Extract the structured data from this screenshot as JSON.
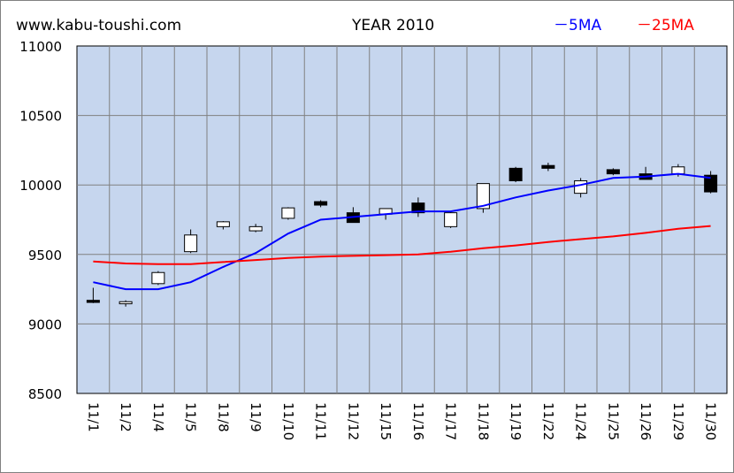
{
  "header": {
    "site": "www.kabu-toushi.com",
    "title": "YEAR 2010",
    "legend_5ma": "－5MA",
    "legend_25ma": "－25MA"
  },
  "colors": {
    "plot_bg": "#c6d6ee",
    "grid": "#808080",
    "ma5": "#0000ff",
    "ma25": "#ff0000",
    "candle_up": "#ffffff",
    "candle_down": "#000000"
  },
  "chart_data": {
    "type": "candlestick",
    "title": "YEAR 2010",
    "ylim": [
      8500,
      11000
    ],
    "yticks": [
      8500,
      9000,
      9500,
      10000,
      10500,
      11000
    ],
    "grid": true,
    "legend_position": "top-right",
    "categories": [
      "11/1",
      "11/2",
      "11/4",
      "11/5",
      "11/8",
      "11/9",
      "11/10",
      "11/11",
      "11/12",
      "11/15",
      "11/16",
      "11/17",
      "11/18",
      "11/19",
      "11/22",
      "11/24",
      "11/25",
      "11/26",
      "11/29",
      "11/30"
    ],
    "candles": [
      {
        "open": 9170,
        "high": 9260,
        "low": 9150,
        "close": 9155
      },
      {
        "open": 9145,
        "high": 9170,
        "low": 9125,
        "close": 9160
      },
      {
        "open": 9290,
        "high": 9380,
        "low": 9280,
        "close": 9370
      },
      {
        "open": 9520,
        "high": 9680,
        "low": 9510,
        "close": 9640
      },
      {
        "open": 9700,
        "high": 9740,
        "low": 9680,
        "close": 9735
      },
      {
        "open": 9670,
        "high": 9720,
        "low": 9660,
        "close": 9700
      },
      {
        "open": 9760,
        "high": 9840,
        "low": 9750,
        "close": 9835
      },
      {
        "open": 9880,
        "high": 9890,
        "low": 9840,
        "close": 9855
      },
      {
        "open": 9800,
        "high": 9840,
        "low": 9730,
        "close": 9730
      },
      {
        "open": 9790,
        "high": 9830,
        "low": 9750,
        "close": 9830
      },
      {
        "open": 9870,
        "high": 9910,
        "low": 9770,
        "close": 9800
      },
      {
        "open": 9700,
        "high": 9810,
        "low": 9690,
        "close": 9800
      },
      {
        "open": 9830,
        "high": 10010,
        "low": 9800,
        "close": 10010
      },
      {
        "open": 10120,
        "high": 10130,
        "low": 10020,
        "close": 10030
      },
      {
        "open": 10140,
        "high": 10160,
        "low": 10100,
        "close": 10120
      },
      {
        "open": 9940,
        "high": 10050,
        "low": 9910,
        "close": 10030
      },
      {
        "open": 10110,
        "high": 10120,
        "low": 10070,
        "close": 10080
      },
      {
        "open": 10080,
        "high": 10130,
        "low": 10040,
        "close": 10040
      },
      {
        "open": 10080,
        "high": 10150,
        "low": 10060,
        "close": 10130
      },
      {
        "open": 10070,
        "high": 10100,
        "low": 9940,
        "close": 9950
      }
    ],
    "series": [
      {
        "name": "5MA",
        "values": [
          9300,
          9250,
          9250,
          9300,
          9410,
          9510,
          9650,
          9750,
          9770,
          9790,
          9810,
          9810,
          9850,
          9910,
          9960,
          10000,
          10050,
          10060,
          10080,
          10050
        ]
      },
      {
        "name": "25MA",
        "values": [
          9450,
          9435,
          9430,
          9430,
          9445,
          9460,
          9475,
          9485,
          9490,
          9495,
          9500,
          9520,
          9545,
          9565,
          9590,
          9610,
          9630,
          9655,
          9685,
          9705
        ]
      }
    ]
  }
}
